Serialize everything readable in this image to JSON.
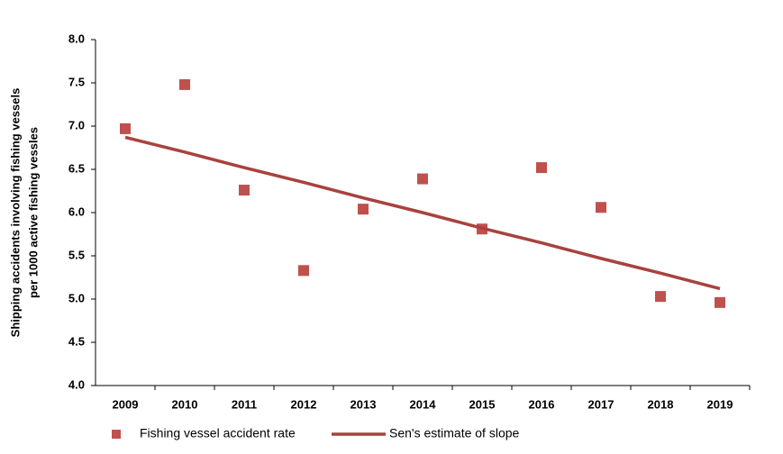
{
  "chart_data": {
    "type": "scatter",
    "ylabel": [
      "Shipping accidents involving fishing vessels",
      "per 1000 active fishing vessles"
    ],
    "categories": [
      "2009",
      "2010",
      "2011",
      "2012",
      "2013",
      "2014",
      "2015",
      "2016",
      "2017",
      "2018",
      "2019"
    ],
    "series": [
      {
        "name": "Fishing vessel accident rate",
        "type": "scatter",
        "color": "#c0504d",
        "values": [
          6.97,
          7.48,
          6.26,
          5.33,
          6.04,
          6.39,
          5.81,
          6.52,
          6.06,
          5.03,
          4.96
        ]
      },
      {
        "name": "Sen's estimate of slope",
        "type": "line",
        "color": "#a8423f",
        "values": [
          6.87,
          6.7,
          6.52,
          6.35,
          6.17,
          6.0,
          5.82,
          5.65,
          5.47,
          5.3,
          5.12
        ]
      }
    ],
    "ylim": [
      4,
      8
    ],
    "yticks": [
      {
        "value": 4,
        "label": "4.0"
      },
      {
        "value": 4.5,
        "label": "4.5"
      },
      {
        "value": 5,
        "label": "5.0"
      },
      {
        "value": 5.5,
        "label": "5.5"
      },
      {
        "value": 6,
        "label": "6.0"
      },
      {
        "value": 6.5,
        "label": "6.5"
      },
      {
        "value": 7,
        "label": "7.0"
      },
      {
        "value": 7.5,
        "label": "7.5"
      },
      {
        "value": 8,
        "label": "8.0"
      }
    ],
    "grid": false,
    "legend": "bottom"
  }
}
